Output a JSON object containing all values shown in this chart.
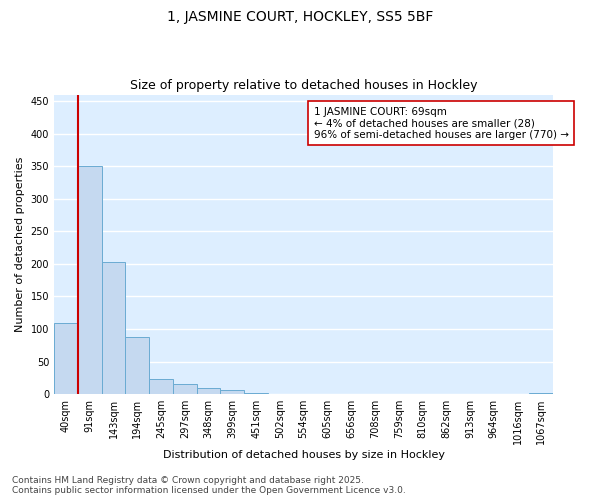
{
  "title": "1, JASMINE COURT, HOCKLEY, SS5 5BF",
  "subtitle": "Size of property relative to detached houses in Hockley",
  "xlabel": "Distribution of detached houses by size in Hockley",
  "ylabel": "Number of detached properties",
  "categories": [
    "40sqm",
    "91sqm",
    "143sqm",
    "194sqm",
    "245sqm",
    "297sqm",
    "348sqm",
    "399sqm",
    "451sqm",
    "502sqm",
    "554sqm",
    "605sqm",
    "656sqm",
    "708sqm",
    "759sqm",
    "810sqm",
    "862sqm",
    "913sqm",
    "964sqm",
    "1016sqm",
    "1067sqm"
  ],
  "values": [
    110,
    350,
    203,
    88,
    23,
    15,
    9,
    7,
    2,
    1,
    0,
    0,
    0,
    0,
    0,
    0,
    0,
    0,
    0,
    0,
    2
  ],
  "bar_color": "#c5d9f0",
  "bar_edge_color": "#6aabd2",
  "bg_color": "#ddeeff",
  "grid_color": "#ffffff",
  "annotation_box_color": "#cc0000",
  "property_line_color": "#cc0000",
  "annotation_line1": "1 JASMINE COURT: 69sqm",
  "annotation_line2": "← 4% of detached houses are smaller (28)",
  "annotation_line3": "96% of semi-detached houses are larger (770) →",
  "ylim": [
    0,
    460
  ],
  "yticks": [
    0,
    50,
    100,
    150,
    200,
    250,
    300,
    350,
    400,
    450
  ],
  "footer": "Contains HM Land Registry data © Crown copyright and database right 2025.\nContains public sector information licensed under the Open Government Licence v3.0.",
  "title_fontsize": 10,
  "subtitle_fontsize": 9,
  "annotation_fontsize": 7.5,
  "tick_fontsize": 7,
  "ylabel_fontsize": 8,
  "xlabel_fontsize": 8,
  "footer_fontsize": 6.5
}
